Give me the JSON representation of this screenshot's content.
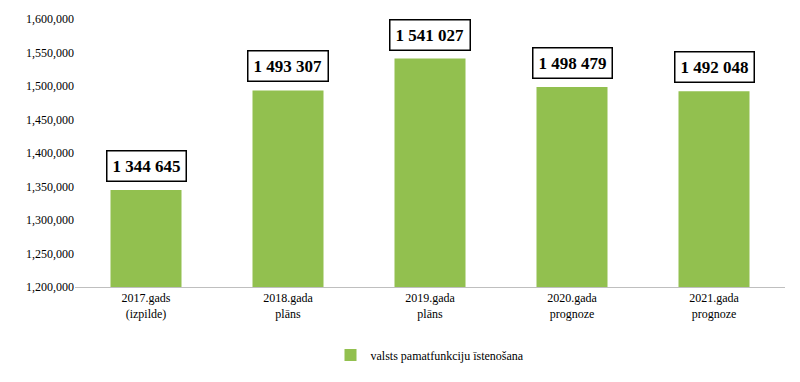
{
  "chart_data": {
    "type": "bar",
    "categories": [
      "2017.gads\n(izpilde)",
      "2018.gada\nplāns",
      "2019.gada\nplāns",
      "2020.gada\nprognoze",
      "2021.gada\nprognoze"
    ],
    "series": [
      {
        "name": "valsts pamatfunkciju īstenošana",
        "color": "#92c04f",
        "values": [
          1344645,
          1493307,
          1541027,
          1498479,
          1492048
        ],
        "value_labels": [
          "1 344 645",
          "1 493 307",
          "1 541 027",
          "1 498 479",
          "1 492 048"
        ]
      }
    ],
    "ylim": [
      1200000,
      1600000
    ],
    "yticks": [
      {
        "value": 1200000,
        "label": "1,200,000"
      },
      {
        "value": 1250000,
        "label": "1,250,000"
      },
      {
        "value": 1300000,
        "label": "1,300,000"
      },
      {
        "value": 1350000,
        "label": "1,350,000"
      },
      {
        "value": 1400000,
        "label": "1,400,000"
      },
      {
        "value": 1450000,
        "label": "1,450,000"
      },
      {
        "value": 1500000,
        "label": "1,500,000"
      },
      {
        "value": 1550000,
        "label": "1,550,000"
      },
      {
        "value": 1600000,
        "label": "1,600,000"
      }
    ],
    "grid": false,
    "legend": "bottom",
    "data_labels": true
  }
}
